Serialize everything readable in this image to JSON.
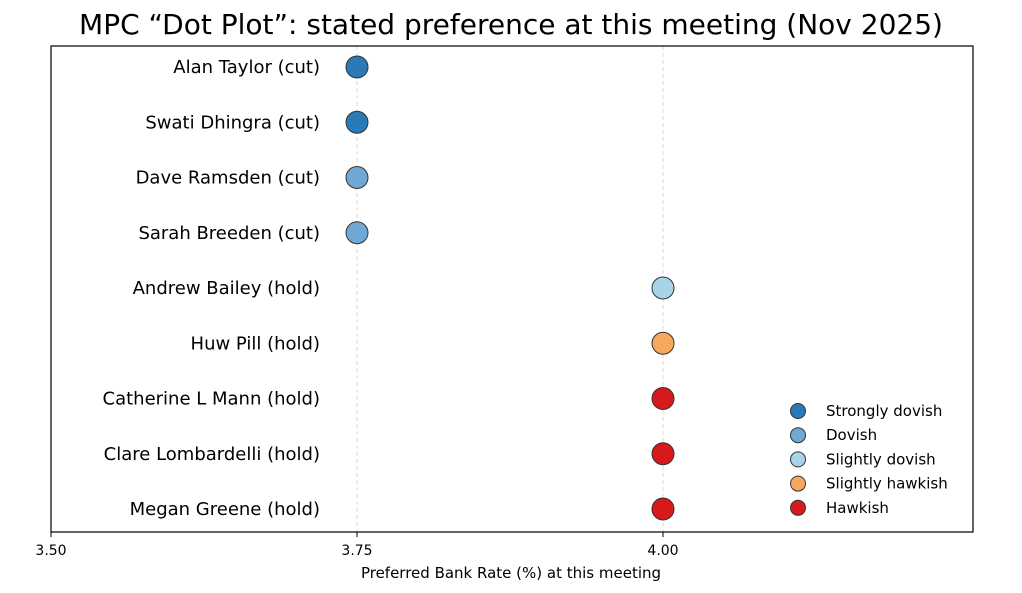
{
  "chart_data": {
    "type": "scatter",
    "title": "MPC “Dot Plot”: stated preference at this meeting (Nov 2025)",
    "xlabel": "Preferred Bank Rate (%) at this meeting",
    "ylabel": "",
    "xlim": [
      3.5,
      4.0
    ],
    "xticks": [
      "3.50",
      "3.75",
      "4.00"
    ],
    "grid": "vertical dashed at 3.75 and 4.00",
    "legend_position": "lower-right",
    "stances": [
      {
        "name": "Strongly dovish",
        "color": "#2a7ab8"
      },
      {
        "name": "Dovish",
        "color": "#6fa8d2"
      },
      {
        "name": "Slightly dovish",
        "color": "#a8d4ea"
      },
      {
        "name": "Slightly hawkish",
        "color": "#f6a95c"
      },
      {
        "name": "Hawkish",
        "color": "#d7191c"
      }
    ],
    "members": [
      {
        "label": "Alan Taylor  (cut)",
        "value": 3.75,
        "stance": "Strongly dovish"
      },
      {
        "label": "Swati Dhingra  (cut)",
        "value": 3.75,
        "stance": "Strongly dovish"
      },
      {
        "label": "Dave Ramsden  (cut)",
        "value": 3.75,
        "stance": "Dovish"
      },
      {
        "label": "Sarah Breeden  (cut)",
        "value": 3.75,
        "stance": "Dovish"
      },
      {
        "label": "Andrew Bailey  (hold)",
        "value": 4.0,
        "stance": "Slightly dovish"
      },
      {
        "label": "Huw Pill  (hold)",
        "value": 4.0,
        "stance": "Slightly hawkish"
      },
      {
        "label": "Catherine L Mann  (hold)",
        "value": 4.0,
        "stance": "Hawkish"
      },
      {
        "label": "Clare Lombardelli  (hold)",
        "value": 4.0,
        "stance": "Hawkish"
      },
      {
        "label": "Megan Greene  (hold)",
        "value": 4.0,
        "stance": "Hawkish"
      }
    ]
  }
}
